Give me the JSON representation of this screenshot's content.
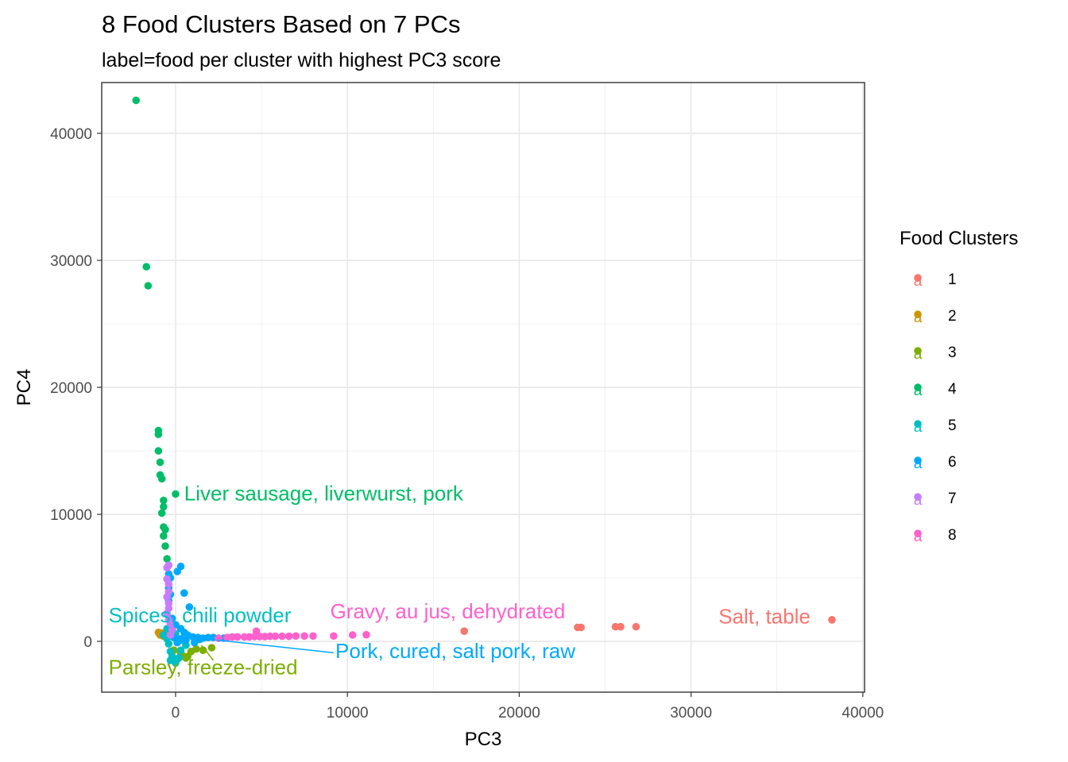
{
  "chart_data": {
    "type": "scatter",
    "title": "8 Food Clusters Based on 7 PCs",
    "subtitle": "label=food per cluster with highest PC3 score",
    "xlabel": "PC3",
    "ylabel": "PC4",
    "xlim": [
      -4300,
      40100
    ],
    "ylim": [
      -4000,
      44000
    ],
    "x_ticks": [
      0,
      10000,
      20000,
      30000,
      40000
    ],
    "y_ticks": [
      0,
      10000,
      20000,
      30000,
      40000
    ],
    "grid": true,
    "legend": {
      "title": "Food Clusters",
      "position": "right",
      "entries": [
        "1",
        "2",
        "3",
        "4",
        "5",
        "6",
        "7",
        "8"
      ]
    },
    "series": [
      {
        "name": "1",
        "color": "#F8766D",
        "points": [
          [
            16800,
            800
          ],
          [
            23400,
            1100
          ],
          [
            23600,
            1100
          ],
          [
            25600,
            1150
          ],
          [
            25900,
            1150
          ],
          [
            26800,
            1150
          ],
          [
            38200,
            1700
          ]
        ]
      },
      {
        "name": "2",
        "color": "#CD9600",
        "points": [
          [
            -1000,
            700
          ],
          [
            -900,
            500
          ],
          [
            -800,
            650
          ],
          [
            -700,
            400
          ],
          [
            -600,
            550
          ],
          [
            -500,
            300
          ]
        ]
      },
      {
        "name": "3",
        "color": "#7CAE00",
        "points": [
          [
            -100,
            -700
          ],
          [
            300,
            -900
          ],
          [
            500,
            -1200
          ],
          [
            600,
            -1300
          ],
          [
            700,
            -1200
          ],
          [
            900,
            -800
          ],
          [
            1200,
            -600
          ],
          [
            1600,
            -700
          ],
          [
            2100,
            -500
          ]
        ]
      },
      {
        "name": "4",
        "color": "#00BE67",
        "points": [
          [
            -2300,
            42600
          ],
          [
            -1700,
            29500
          ],
          [
            -1600,
            28000
          ],
          [
            -1000,
            16600
          ],
          [
            -1000,
            16300
          ],
          [
            -1000,
            15000
          ],
          [
            -900,
            14100
          ],
          [
            -900,
            13100
          ],
          [
            -800,
            12800
          ],
          [
            -700,
            11100
          ],
          [
            -700,
            10600
          ],
          [
            -800,
            10100
          ],
          [
            -700,
            9000
          ],
          [
            -600,
            8800
          ],
          [
            -700,
            8300
          ],
          [
            -600,
            7500
          ],
          [
            -500,
            6500
          ],
          [
            0,
            11600
          ]
        ]
      },
      {
        "name": "5",
        "color": "#00BFC4",
        "points": [
          [
            -700,
            500
          ],
          [
            -500,
            200
          ],
          [
            -400,
            -200
          ],
          [
            -300,
            -800
          ],
          [
            -200,
            -1200
          ],
          [
            -100,
            -1500
          ],
          [
            0,
            -1700
          ],
          [
            200,
            -1300
          ],
          [
            300,
            -700
          ],
          [
            -500,
            1000
          ],
          [
            0,
            600
          ],
          [
            400,
            100
          ],
          [
            600,
            -300
          ],
          [
            -300,
            -1500
          ],
          [
            100,
            -1400
          ]
        ]
      },
      {
        "name": "6",
        "color": "#00A9FF",
        "points": [
          [
            300,
            5900
          ],
          [
            100,
            5500
          ],
          [
            -400,
            5300
          ],
          [
            -300,
            5000
          ],
          [
            -400,
            4200
          ],
          [
            -300,
            3700
          ],
          [
            -400,
            3200
          ],
          [
            500,
            3800
          ],
          [
            800,
            2700
          ],
          [
            -200,
            1800
          ],
          [
            0,
            1300
          ],
          [
            300,
            1000
          ],
          [
            500,
            700
          ],
          [
            700,
            500
          ],
          [
            1000,
            350
          ],
          [
            1300,
            300
          ],
          [
            1600,
            250
          ],
          [
            1900,
            300
          ],
          [
            2200,
            300
          ],
          [
            2500,
            250
          ],
          [
            2800,
            250
          ],
          [
            -100,
            300
          ],
          [
            300,
            200
          ],
          [
            100,
            -100
          ],
          [
            600,
            100
          ],
          [
            1100,
            -100
          ],
          [
            1400,
            150
          ]
        ]
      },
      {
        "name": "7",
        "color": "#C77CFF",
        "points": [
          [
            -400,
            6000
          ],
          [
            -500,
            5800
          ],
          [
            -500,
            4900
          ],
          [
            -400,
            4500
          ],
          [
            -400,
            3900
          ],
          [
            -500,
            3500
          ],
          [
            -400,
            3000
          ],
          [
            -400,
            2600
          ],
          [
            -500,
            2200
          ],
          [
            -400,
            1700
          ],
          [
            -300,
            1400
          ],
          [
            -200,
            900
          ],
          [
            -300,
            500
          ]
        ]
      },
      {
        "name": "8",
        "color": "#FF61CC",
        "points": [
          [
            2500,
            250
          ],
          [
            3000,
            300
          ],
          [
            3300,
            350
          ],
          [
            3600,
            350
          ],
          [
            4000,
            350
          ],
          [
            4300,
            350
          ],
          [
            4600,
            380
          ],
          [
            4900,
            380
          ],
          [
            5200,
            380
          ],
          [
            5500,
            400
          ],
          [
            5800,
            400
          ],
          [
            6200,
            400
          ],
          [
            6600,
            400
          ],
          [
            7000,
            420
          ],
          [
            7500,
            420
          ],
          [
            8000,
            420
          ],
          [
            9200,
            420
          ],
          [
            10300,
            500
          ],
          [
            11100,
            520
          ],
          [
            4700,
            800
          ]
        ]
      }
    ],
    "annotations": [
      {
        "text": "Liver sausage, liverwurst, pork",
        "series": "4",
        "x": 500,
        "y": 11100,
        "anchor": "start"
      },
      {
        "text": "Spices, chili powder",
        "series": "5",
        "x": -3900,
        "y": 1500,
        "anchor": "start"
      },
      {
        "text": "Parsley, freeze-dried",
        "series": "3",
        "x": -3900,
        "y": -2600,
        "anchor": "start",
        "pointer_from": [
          2200,
          -1500
        ],
        "pointer_to": [
          1500,
          -300
        ]
      },
      {
        "text": "Gravy, au jus, dehydrated",
        "series": "8",
        "x": 9000,
        "y": 1800,
        "anchor": "start"
      },
      {
        "text": "Pork, cured, salt pork, raw",
        "series": "6",
        "x": 9300,
        "y": -1300,
        "anchor": "start",
        "pointer_from": [
          9200,
          -900
        ],
        "pointer_to": [
          2400,
          100
        ]
      },
      {
        "text": "Salt, table",
        "series": "1",
        "x": 31600,
        "y": 1400,
        "anchor": "start"
      }
    ]
  }
}
